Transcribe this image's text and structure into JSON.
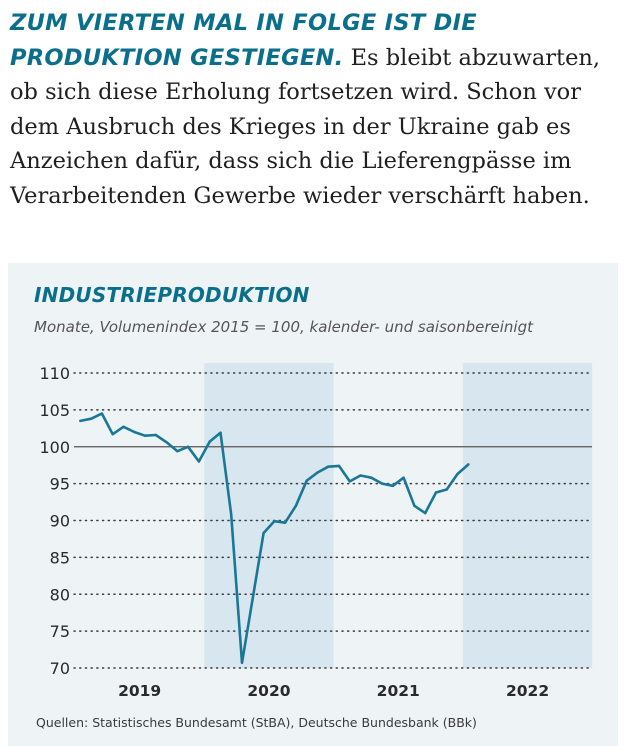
{
  "intro": {
    "lead": "ZUM VIERTEN MAL IN FOLGE IST DIE PRODUKTION GESTIEGEN.",
    "body": " Es bleibt abzuwarten, ob sich diese Erholung fortsetzen wird. Schon vor dem Ausbruch des Krieges in der Ukraine gab es Anzeichen dafür, dass sich die Lieferengpässe im Verarbeitenden Gewerbe wieder verschärft haben."
  },
  "colors": {
    "accent": "#0b6f8c",
    "line": "#1a7797",
    "shade": "#d8e6ef",
    "panel": "#eef3f6"
  },
  "chart_data": {
    "type": "line",
    "title": "INDUSTRIEPRODUKTION",
    "subtitle": "Monate, Volumenindex 2015 = 100, kalender- und saisonbereinigt",
    "ylim": [
      70,
      110
    ],
    "yticks": [
      110,
      105,
      100,
      95,
      90,
      85,
      80,
      75,
      70
    ],
    "xticks": [
      "2019",
      "2020",
      "2021",
      "2022"
    ],
    "reference_line": 100,
    "shaded_years": [
      "2020",
      "2022"
    ],
    "grid": "dotted horizontal",
    "series": [
      {
        "x": [
          "2019-01",
          "2019-02",
          "2019-03",
          "2019-04",
          "2019-05",
          "2019-06",
          "2019-07",
          "2019-08",
          "2019-09",
          "2019-10",
          "2019-11",
          "2019-12",
          "2020-01",
          "2020-02",
          "2020-03",
          "2020-04",
          "2020-05",
          "2020-06",
          "2020-07",
          "2020-08",
          "2020-09",
          "2020-10",
          "2020-11",
          "2020-12",
          "2021-01",
          "2021-02",
          "2021-03",
          "2021-04",
          "2021-05",
          "2021-06",
          "2021-07",
          "2021-08",
          "2021-09",
          "2021-10",
          "2021-11",
          "2021-12",
          "2022-01"
        ],
        "values": [
          103.5,
          103.8,
          104.5,
          101.7,
          102.7,
          102.0,
          101.5,
          101.6,
          100.6,
          99.4,
          100.0,
          98.0,
          100.7,
          101.9,
          90.8,
          70.7,
          79.5,
          88.3,
          89.9,
          89.7,
          92.0,
          95.4,
          96.5,
          97.3,
          97.4,
          95.3,
          96.1,
          95.8,
          95.0,
          94.7,
          95.8,
          92.0,
          91.0,
          93.8,
          94.2,
          96.3,
          97.6
        ]
      }
    ]
  },
  "source": "Quellen: Statistisches Bundesamt (StBA), Deutsche Bundesbank (BBk)"
}
